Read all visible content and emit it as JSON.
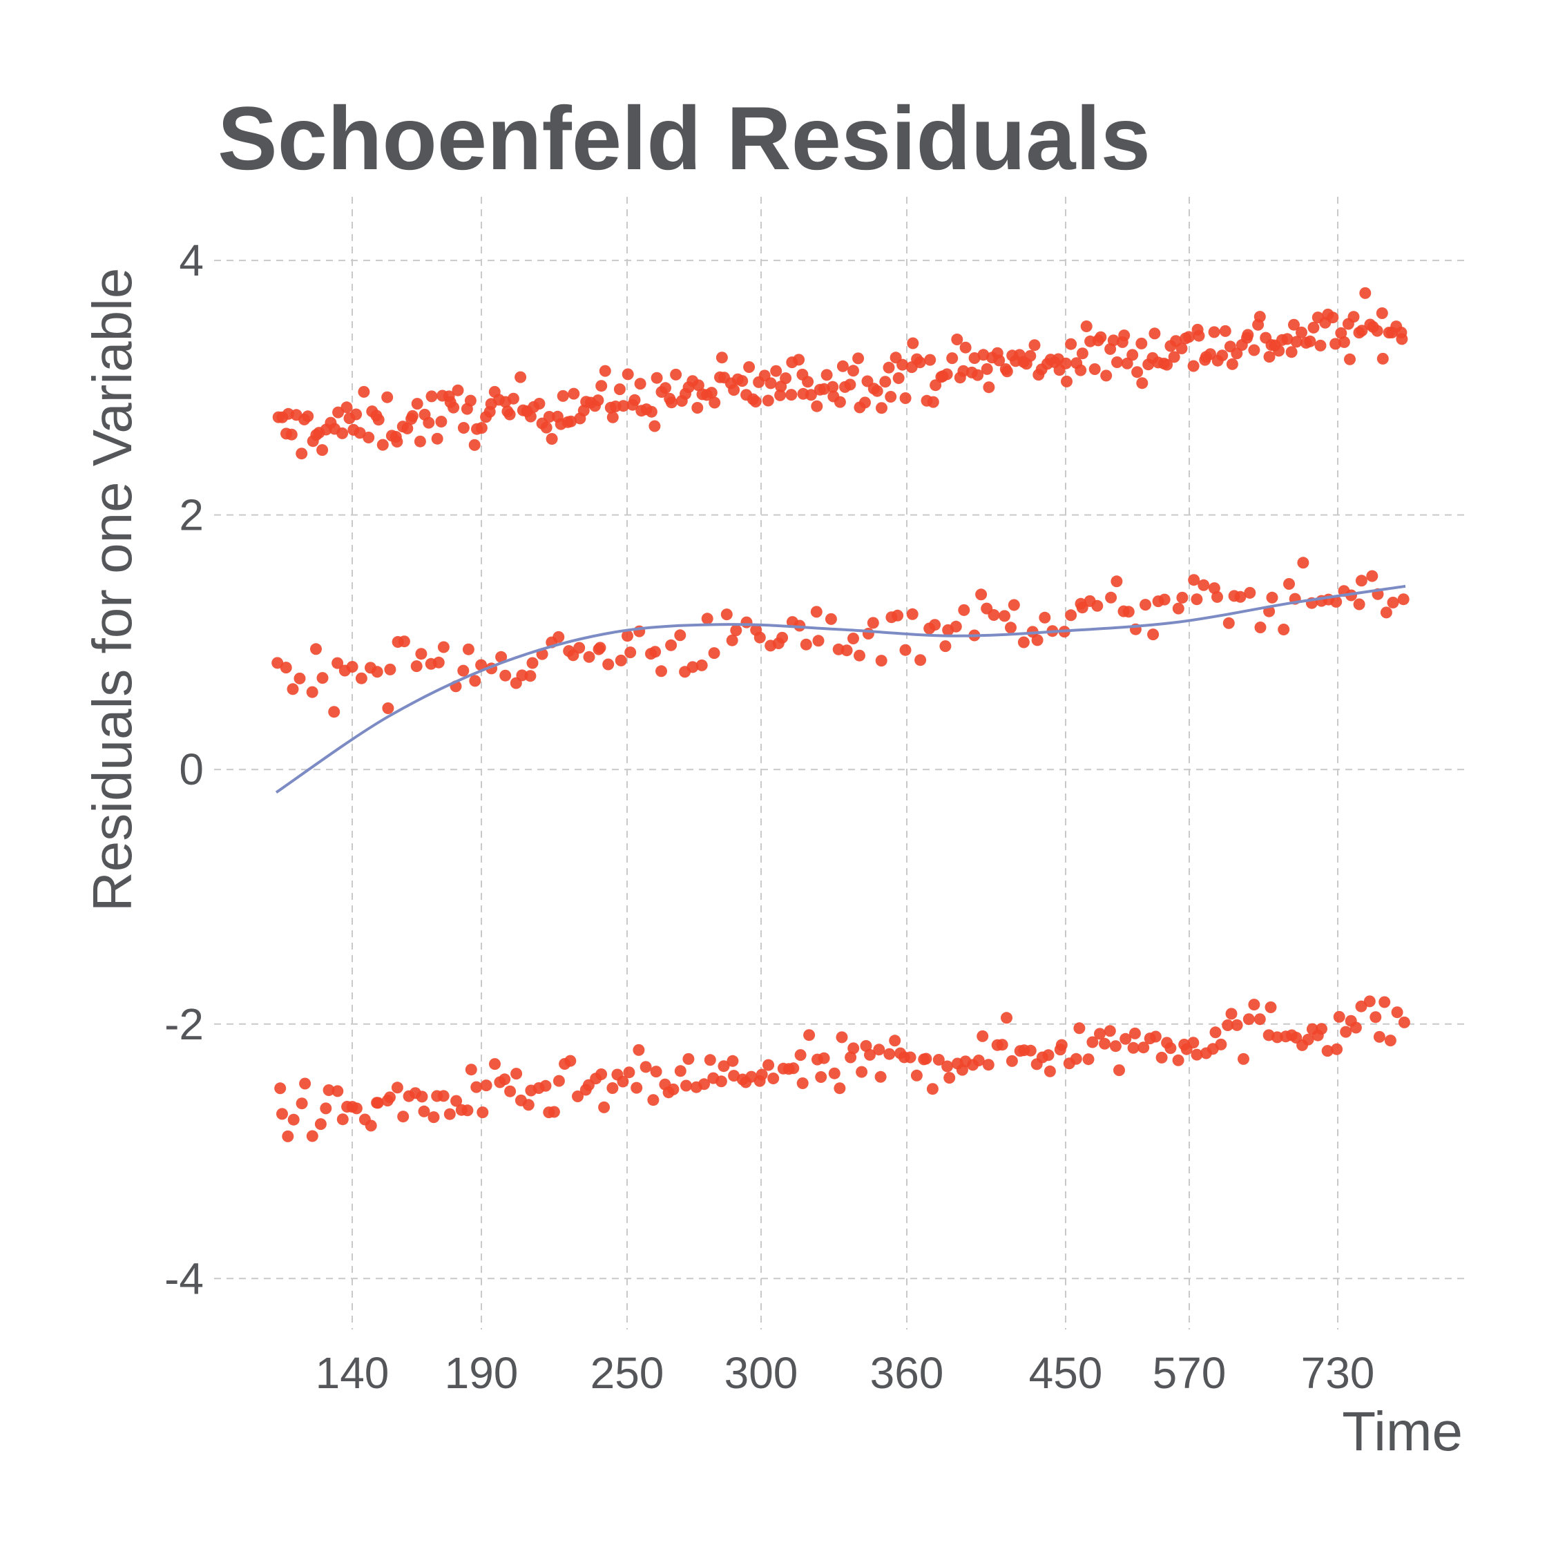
{
  "chart_data": {
    "type": "scatter",
    "title": "Schoenfeld Residuals",
    "xlabel": "Time",
    "ylabel": "Residuals for one Variable",
    "x_scale": "rank-transformed (km)",
    "x_tick_labels": [
      "140",
      "190",
      "250",
      "300",
      "360",
      "450",
      "570",
      "730"
    ],
    "ylim": [
      -4.4,
      4.5
    ],
    "y_ticks": [
      -4,
      -2,
      0,
      2,
      4
    ],
    "y_tick_labels": [
      "-4",
      "-2",
      "0",
      "2",
      "4"
    ],
    "grid": true,
    "point_color": "#f0462b",
    "line_color": "#7c8bc4",
    "band_points": [
      {
        "y_start": 2.65,
        "y_end": 3.48,
        "count": 300,
        "jitter": 0.11
      },
      {
        "y_start": 0.72,
        "y_end": 1.42,
        "count": 150,
        "jitter": 0.12
      },
      {
        "y_start": -2.72,
        "y_end": -1.96,
        "count": 200,
        "jitter": 0.11
      }
    ],
    "smooth_line": {
      "x_rank": [
        0.0,
        0.1,
        0.2,
        0.3,
        0.4,
        0.5,
        0.6,
        0.7,
        0.8,
        0.9,
        1.0
      ],
      "y": [
        -0.18,
        0.42,
        0.84,
        1.08,
        1.14,
        1.1,
        1.05,
        1.09,
        1.16,
        1.31,
        1.44
      ]
    }
  }
}
